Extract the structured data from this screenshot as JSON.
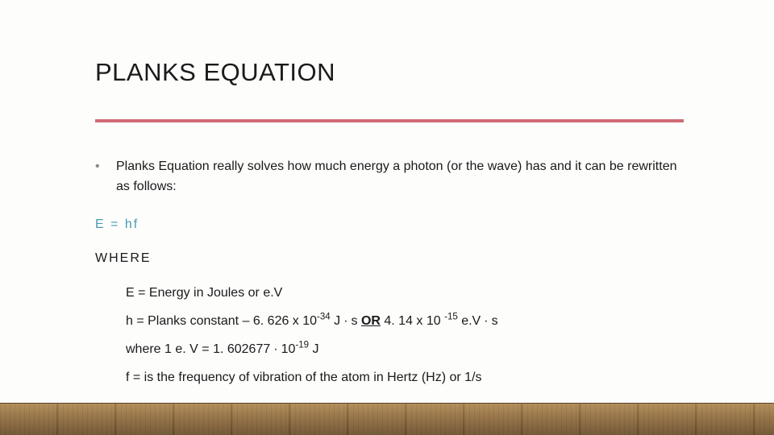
{
  "title": "PLANKS EQUATION",
  "bullet": "Planks Equation really solves how much energy a photon (or the wave) has and it can be rewritten as follows:",
  "equation": "E = hf",
  "where_label": "WHERE",
  "defs": {
    "E": "E = Energy in Joules or e.V",
    "h_prefix": "h = Planks constant – 6. 626 x 10",
    "h_sup1": "-34",
    "h_mid1": " J ∙ s ",
    "h_or": "OR",
    "h_mid2": "   4. 14 x 10 ",
    "h_sup2": "-15",
    "h_suffix": " e.V ∙ s",
    "ev_prefix": "where 1 e. V = 1. 602677 ∙ 10",
    "ev_sup": "-19",
    "ev_suffix": " J",
    "f": "f = is the frequency of vibration of the atom in Hertz (Hz) or 1/s"
  },
  "colors": {
    "divider": "#d06b77",
    "equation": "#4a9bb5",
    "text": "#1a1a1a",
    "background": "#fdfdfc"
  }
}
